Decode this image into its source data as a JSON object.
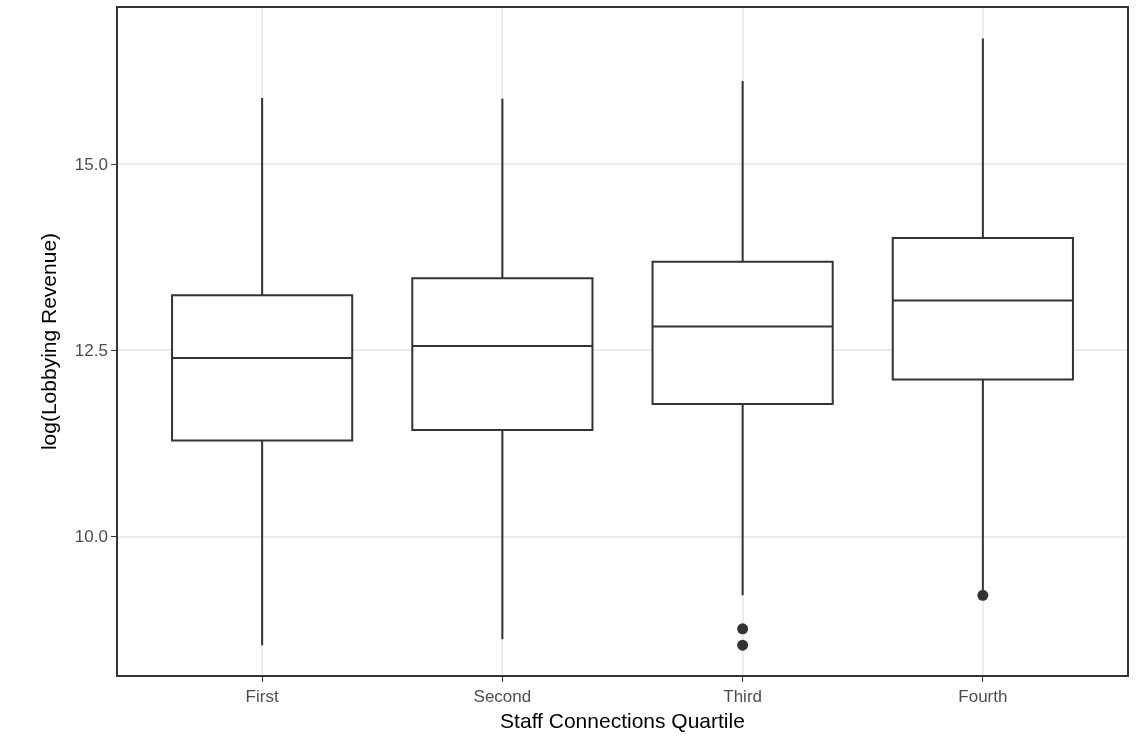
{
  "chart_data": {
    "type": "box",
    "xlabel": "Staff Connections Quartile",
    "ylabel": "log(Lobbying Revenue)",
    "categories": [
      "First",
      "Second",
      "Third",
      "Fourth"
    ],
    "boxes": [
      {
        "low": 8.54,
        "q1": 11.29,
        "median": 12.4,
        "q3": 13.24,
        "high": 15.89
      },
      {
        "low": 8.62,
        "q1": 11.43,
        "median": 12.56,
        "q3": 13.47,
        "high": 15.88
      },
      {
        "low": 9.21,
        "q1": 11.78,
        "median": 12.82,
        "q3": 13.69,
        "high": 16.12,
        "outliers": [
          8.76,
          8.54
        ]
      },
      {
        "low": 9.23,
        "q1": 12.11,
        "median": 13.17,
        "q3": 14.01,
        "high": 16.69,
        "outliers": [
          9.21
        ]
      }
    ],
    "color": "#333333",
    "ylim": [
      8.14,
      17.1
    ],
    "yticks": [
      {
        "value": 10,
        "label": "10.0"
      },
      {
        "value": 12.5,
        "label": "12.5"
      },
      {
        "value": 15,
        "label": "15.0"
      }
    ],
    "grid": true,
    "marker": "circle"
  }
}
